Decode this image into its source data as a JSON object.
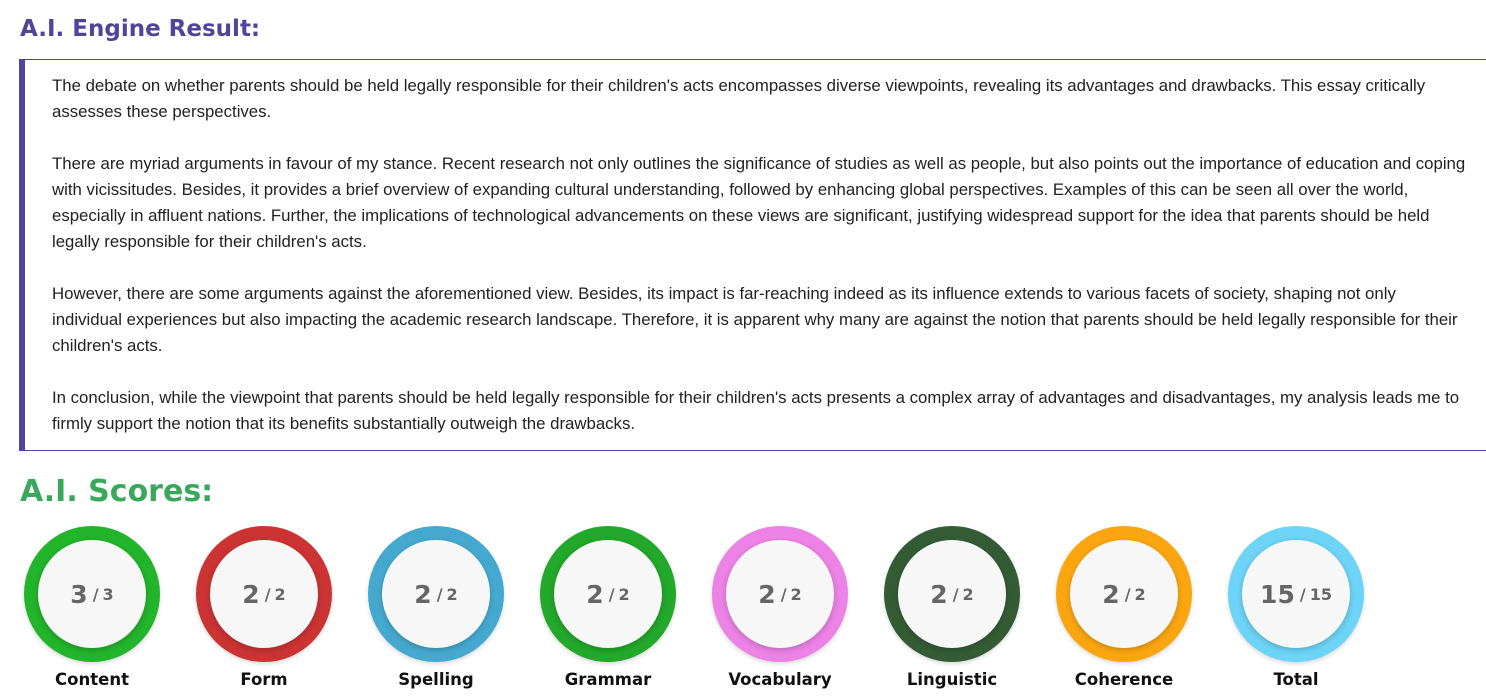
{
  "header": {
    "title": "A.I. Engine Result:"
  },
  "essay": {
    "paragraphs": [
      "The debate on whether parents should be held legally responsible for their children's acts encompasses diverse viewpoints, revealing its advantages and drawbacks. This essay critically assesses these perspectives.",
      "There are myriad arguments in favour of my stance. Recent research not only outlines the significance of studies as well as people, but also points out the importance of education and coping with vicissitudes. Besides, it provides a brief overview of expanding cultural understanding, followed by enhancing global perspectives. Examples of this can be seen all over the world, especially in affluent nations. Further, the implications of technological advancements on these views are significant, justifying widespread support for the idea that parents should be held legally responsible for their children's acts.",
      "However, there are some arguments against the aforementioned view. Besides, its impact is far-reaching indeed as its influence extends to various facets of society, shaping not only individual experiences but also impacting the academic research landscape. Therefore, it is apparent why many are against the notion that parents should be held legally responsible for their children's acts.",
      "In conclusion, while the viewpoint that parents should be held legally responsible for their children's acts presents a complex array of advantages and disadvantages, my analysis leads me to firmly support the notion that its benefits substantially outweigh the drawbacks."
    ]
  },
  "scores": {
    "title": "A.I. Scores:",
    "separator": "/",
    "items": [
      {
        "label": "Content",
        "score": 3,
        "max": 3,
        "color": "#22b42a"
      },
      {
        "label": "Form",
        "score": 2,
        "max": 2,
        "color": "#cc3333"
      },
      {
        "label": "Spelling",
        "score": 2,
        "max": 2,
        "color": "#45a9cf"
      },
      {
        "label": "Grammar",
        "score": 2,
        "max": 2,
        "color": "#22a82a"
      },
      {
        "label": "Vocabulary",
        "score": 2,
        "max": 2,
        "color": "#ec82e5"
      },
      {
        "label": "Linguistic",
        "score": 2,
        "max": 2,
        "color": "#335c35"
      },
      {
        "label": "Coherence",
        "score": 2,
        "max": 2,
        "color": "#fba611"
      },
      {
        "label": "Total",
        "score": 15,
        "max": 15,
        "color": "#6dd3f7"
      }
    ]
  }
}
